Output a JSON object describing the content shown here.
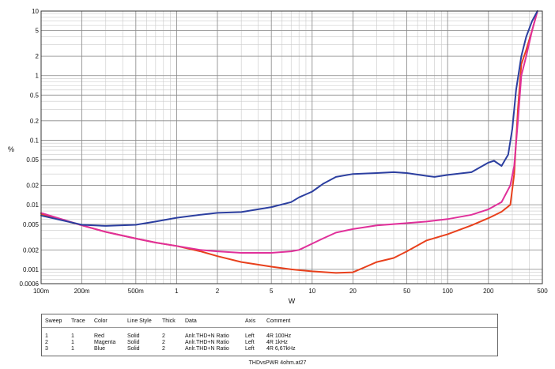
{
  "chart_data": {
    "type": "line",
    "title": "",
    "xlabel": "W",
    "ylabel": "%",
    "x_scale": "log",
    "y_scale": "log",
    "xlim": [
      0.1,
      500
    ],
    "ylim": [
      0.0006,
      10
    ],
    "grid": true,
    "x_ticks": [
      {
        "value": 0.1,
        "label": "100m"
      },
      {
        "value": 0.2,
        "label": "200m"
      },
      {
        "value": 0.5,
        "label": "500m"
      },
      {
        "value": 1,
        "label": "1"
      },
      {
        "value": 2,
        "label": "2"
      },
      {
        "value": 5,
        "label": "5"
      },
      {
        "value": 10,
        "label": "10"
      },
      {
        "value": 20,
        "label": "20"
      },
      {
        "value": 50,
        "label": "50"
      },
      {
        "value": 100,
        "label": "100"
      },
      {
        "value": 200,
        "label": "200"
      },
      {
        "value": 500,
        "label": "500"
      }
    ],
    "y_ticks": [
      {
        "value": 10,
        "label": "10"
      },
      {
        "value": 5,
        "label": "5"
      },
      {
        "value": 2,
        "label": "2"
      },
      {
        "value": 1,
        "label": "1"
      },
      {
        "value": 0.5,
        "label": "0.5"
      },
      {
        "value": 0.2,
        "label": "0.2"
      },
      {
        "value": 0.1,
        "label": "0.1"
      },
      {
        "value": 0.05,
        "label": "0.05"
      },
      {
        "value": 0.02,
        "label": "0.02"
      },
      {
        "value": 0.01,
        "label": "0.01"
      },
      {
        "value": 0.005,
        "label": "0.005"
      },
      {
        "value": 0.002,
        "label": "0.002"
      },
      {
        "value": 0.001,
        "label": "0.001"
      },
      {
        "value": 0.0006,
        "label": "0.0006"
      }
    ],
    "series": [
      {
        "name": "4R 100Hz",
        "color": "#e8401c",
        "x": [
          0.1,
          0.2,
          0.3,
          0.5,
          0.7,
          1,
          1.5,
          2,
          3,
          5,
          7,
          10,
          15,
          20,
          25,
          30,
          40,
          50,
          70,
          100,
          150,
          200,
          250,
          290,
          310,
          330,
          350,
          380,
          420,
          460
        ],
        "y": [
          0.0072,
          0.0048,
          0.0038,
          0.003,
          0.0026,
          0.0023,
          0.0019,
          0.0016,
          0.0013,
          0.0011,
          0.001,
          0.00093,
          0.00088,
          0.0009,
          0.0011,
          0.0013,
          0.0015,
          0.0019,
          0.0028,
          0.0035,
          0.0048,
          0.0062,
          0.0078,
          0.01,
          0.03,
          0.3,
          1.5,
          2.5,
          5,
          10
        ]
      },
      {
        "name": "4R 1kHz",
        "color": "#e0309a",
        "x": [
          0.1,
          0.2,
          0.3,
          0.5,
          0.7,
          1,
          1.5,
          2,
          3,
          5,
          7,
          8,
          10,
          12,
          15,
          20,
          30,
          50,
          70,
          100,
          150,
          200,
          250,
          290,
          310,
          330,
          350,
          380,
          420,
          460
        ],
        "y": [
          0.0075,
          0.0048,
          0.0038,
          0.003,
          0.0026,
          0.0023,
          0.002,
          0.0019,
          0.0018,
          0.0018,
          0.0019,
          0.002,
          0.0025,
          0.003,
          0.0037,
          0.0042,
          0.0048,
          0.0052,
          0.0055,
          0.006,
          0.007,
          0.0085,
          0.011,
          0.02,
          0.04,
          0.2,
          1,
          2,
          5,
          10
        ]
      },
      {
        "name": "4R 6,67kHz",
        "color": "#2c3fa0",
        "x": [
          0.1,
          0.2,
          0.3,
          0.5,
          0.7,
          1,
          1.5,
          2,
          3,
          5,
          7,
          8,
          10,
          12,
          15,
          20,
          30,
          40,
          50,
          70,
          80,
          100,
          150,
          200,
          220,
          250,
          280,
          300,
          320,
          350,
          380,
          420,
          460
        ],
        "y": [
          0.0068,
          0.0049,
          0.0047,
          0.0049,
          0.0055,
          0.0063,
          0.007,
          0.0075,
          0.0077,
          0.0092,
          0.011,
          0.013,
          0.016,
          0.021,
          0.027,
          0.03,
          0.031,
          0.032,
          0.031,
          0.028,
          0.027,
          0.029,
          0.032,
          0.045,
          0.048,
          0.04,
          0.06,
          0.15,
          0.6,
          2,
          4,
          7,
          10
        ]
      }
    ]
  },
  "legend_table": {
    "headers": [
      "Sweep",
      "Trace",
      "Color",
      "Line Style",
      "Thick",
      "Data",
      "Axis",
      "Comment"
    ],
    "rows": [
      [
        "1",
        "1",
        "Red",
        "Solid",
        "2",
        "Anlr.THD+N Ratio",
        "Left",
        "4R 100Hz"
      ],
      [
        "2",
        "1",
        "Magenta",
        "Solid",
        "2",
        "Anlr.THD+N Ratio",
        "Left",
        "4R 1kHz"
      ],
      [
        "3",
        "1",
        "Blue",
        "Solid",
        "2",
        "Anlr.THD+N Ratio",
        "Left",
        "4R 6,67kHz"
      ]
    ]
  },
  "footer": "THDvsPWR 4ohm.at27"
}
